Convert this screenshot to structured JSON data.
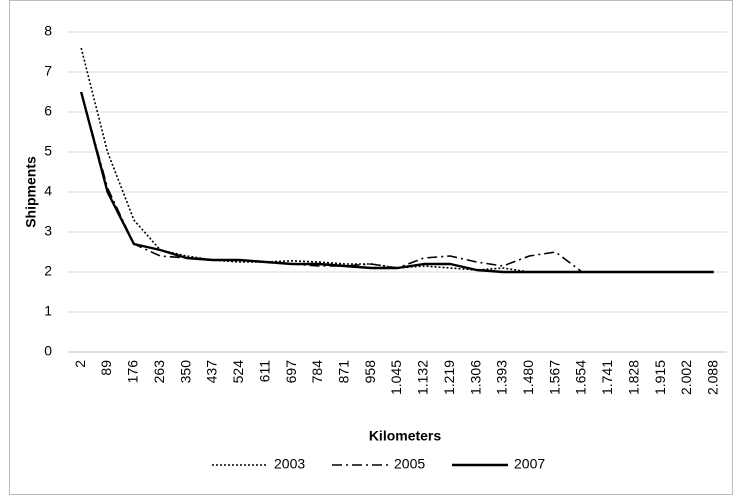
{
  "chart_data": {
    "type": "line",
    "xlabel": "Kilometers",
    "ylabel": "Shipments",
    "categories": [
      "2",
      "89",
      "176",
      "263",
      "350",
      "437",
      "524",
      "611",
      "697",
      "784",
      "871",
      "958",
      "1.045",
      "1.132",
      "1.219",
      "1.306",
      "1.393",
      "1.480",
      "1.567",
      "1.654",
      "1.741",
      "1.828",
      "1.915",
      "2.002",
      "2.088"
    ],
    "series": [
      {
        "name": "2003",
        "color": "#000000",
        "dash": "dotted",
        "values": [
          7.6,
          5.0,
          3.3,
          2.55,
          2.4,
          2.3,
          2.25,
          2.25,
          2.28,
          2.25,
          2.2,
          2.2,
          2.1,
          2.15,
          2.1,
          2.05,
          2.1,
          2.0,
          2.0,
          2.0,
          2.0,
          2.0,
          2.0,
          2.0,
          2.0
        ]
      },
      {
        "name": "2005",
        "color": "#000000",
        "dash": "dashdot",
        "values": [
          6.5,
          4.1,
          2.7,
          2.4,
          2.35,
          2.3,
          2.3,
          2.25,
          2.2,
          2.15,
          2.15,
          2.2,
          2.1,
          2.35,
          2.4,
          2.25,
          2.15,
          2.4,
          2.5,
          2.0,
          2.0,
          2.0,
          2.0,
          2.0,
          2.0
        ]
      },
      {
        "name": "2007",
        "color": "#000000",
        "dash": "solid",
        "values": [
          6.5,
          4.0,
          2.7,
          2.55,
          2.35,
          2.3,
          2.3,
          2.25,
          2.2,
          2.2,
          2.15,
          2.1,
          2.1,
          2.2,
          2.2,
          2.05,
          2.0,
          2.0,
          2.0,
          2.0,
          2.0,
          2.0,
          2.0,
          2.0,
          2.0
        ]
      }
    ],
    "ylim": [
      0,
      8
    ],
    "yticks": [
      0,
      1,
      2,
      3,
      4,
      5,
      6,
      7,
      8
    ],
    "grid": true,
    "legend": "bottom"
  }
}
